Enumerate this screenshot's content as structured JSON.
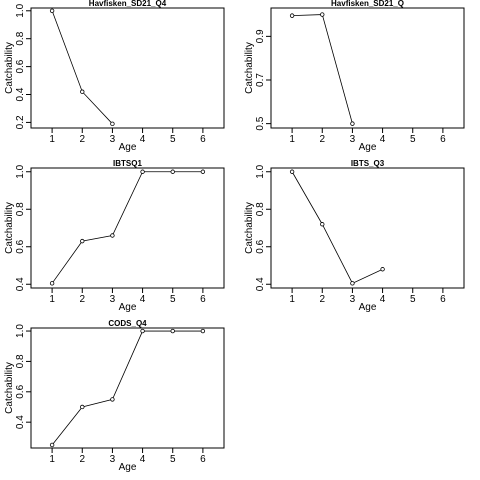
{
  "chart_data": [
    {
      "type": "line",
      "title": "Havfisken_SD21_Q4",
      "xlabel": "Age",
      "ylabel": "Catchability",
      "xlim": [
        0.3,
        6.7
      ],
      "ylim": [
        0.16,
        1.02
      ],
      "x_ticks": [
        "1",
        "2",
        "3",
        "4",
        "5",
        "6"
      ],
      "y_ticks": [
        "0.2",
        "0.4",
        "0.6",
        "0.8",
        "1.0"
      ],
      "series": [
        {
          "x": [
            1,
            2,
            3
          ],
          "y": [
            1.0,
            0.42,
            0.19
          ]
        }
      ]
    },
    {
      "type": "line",
      "title": "Havfisken_SD21_Q",
      "xlabel": "Age",
      "ylabel": "Catchability",
      "xlim": [
        0.3,
        6.7
      ],
      "ylim": [
        0.48,
        1.03
      ],
      "x_ticks": [
        "1",
        "2",
        "3",
        "4",
        "5",
        "6"
      ],
      "y_ticks": [
        "0.5",
        "0.7",
        "0.9"
      ],
      "series": [
        {
          "x": [
            1,
            2,
            3
          ],
          "y": [
            0.995,
            1.0,
            0.5
          ]
        }
      ]
    },
    {
      "type": "line",
      "title": "IBTSQ1",
      "xlabel": "Age",
      "ylabel": "Catchability",
      "xlim": [
        0.3,
        6.7
      ],
      "ylim": [
        0.38,
        1.02
      ],
      "x_ticks": [
        "1",
        "2",
        "3",
        "4",
        "5",
        "6"
      ],
      "y_ticks": [
        "0.4",
        "0.6",
        "0.8",
        "1.0"
      ],
      "series": [
        {
          "x": [
            1,
            2,
            3,
            4,
            5,
            6
          ],
          "y": [
            0.405,
            0.63,
            0.66,
            1.0,
            1.0,
            1.0
          ]
        }
      ]
    },
    {
      "type": "line",
      "title": "IBTS_Q3",
      "xlabel": "Age",
      "ylabel": "Catchability",
      "xlim": [
        0.3,
        6.7
      ],
      "ylim": [
        0.38,
        1.02
      ],
      "x_ticks": [
        "1",
        "2",
        "3",
        "4",
        "5",
        "6"
      ],
      "y_ticks": [
        "0.4",
        "0.6",
        "0.8",
        "1.0"
      ],
      "series": [
        {
          "x": [
            1,
            2,
            3,
            4
          ],
          "y": [
            1.0,
            0.72,
            0.405,
            0.48
          ]
        }
      ]
    },
    {
      "type": "line",
      "title": "CODS_Q4",
      "xlabel": "Age",
      "ylabel": "Catchability",
      "xlim": [
        0.3,
        6.7
      ],
      "ylim": [
        0.23,
        1.02
      ],
      "x_ticks": [
        "1",
        "2",
        "3",
        "4",
        "5",
        "6"
      ],
      "y_ticks": [
        "0.4",
        "0.6",
        "0.8",
        "1.0"
      ],
      "series": [
        {
          "x": [
            1,
            2,
            3,
            4,
            5,
            6
          ],
          "y": [
            0.25,
            0.5,
            0.55,
            1.0,
            1.0,
            1.0
          ]
        }
      ]
    }
  ]
}
